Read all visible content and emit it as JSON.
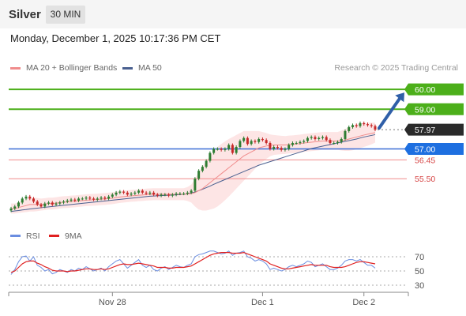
{
  "header": {
    "instrument": "Silver",
    "timeframe": "30 MIN",
    "datetime": "Monday, December 1, 2025 10:17:36 PM CET"
  },
  "legend": {
    "ma20_label": "MA 20 + Bollinger Bands",
    "ma50_label": "MA 50",
    "credit": "Research © 2025 Trading Central"
  },
  "rsi_legend": {
    "rsi_label": "RSI",
    "ma_label": "9MA"
  },
  "colors": {
    "up_candle": "#2e7d32",
    "down_candle": "#c62828",
    "target_line": "#4caf1a",
    "pivot_line": "#3d6fd6",
    "support_line": "#f08c8c",
    "ma20": "#f08c8c",
    "ma50": "#4a6090",
    "bollinger_fill": "#fde0e0",
    "arrow": "#2f5fa8",
    "rsi": "#6a8de0",
    "rsi_ma": "#e02020"
  },
  "chart_data": [
    {
      "type": "candlestick",
      "ylim": [
        53.6,
        60.8
      ],
      "x_tick_labels": [
        "Nov 28",
        "Dec 1",
        "Dec 2"
      ],
      "levels": [
        {
          "name": "target-2",
          "value": 60.0,
          "label": "60.00",
          "kind": "resistance"
        },
        {
          "name": "target-1",
          "value": 59.0,
          "label": "59.00",
          "kind": "resistance"
        },
        {
          "name": "last-price",
          "value": 57.97,
          "label": "57.97",
          "kind": "last"
        },
        {
          "name": "pivot",
          "value": 57.0,
          "label": "57.00",
          "kind": "pivot"
        },
        {
          "name": "support-1",
          "value": 56.45,
          "label": "56.45",
          "kind": "support"
        },
        {
          "name": "support-2",
          "value": 55.5,
          "label": "55.50",
          "kind": "support"
        }
      ],
      "closes": [
        54.0,
        54.1,
        54.3,
        54.5,
        54.6,
        54.5,
        54.35,
        54.2,
        54.1,
        54.25,
        54.3,
        54.2,
        54.25,
        54.3,
        54.35,
        54.4,
        54.45,
        54.4,
        54.5,
        54.5,
        54.55,
        54.5,
        54.45,
        54.5,
        54.55,
        54.5,
        54.6,
        54.7,
        54.8,
        54.85,
        54.8,
        54.7,
        54.75,
        54.8,
        54.9,
        54.8,
        54.75,
        54.8,
        54.7,
        54.65,
        54.7,
        54.7,
        54.65,
        54.7,
        54.75,
        54.75,
        54.75,
        54.8,
        54.9,
        55.5,
        55.9,
        56.1,
        56.4,
        56.8,
        57.0,
        57.0,
        56.95,
        57.0,
        57.2,
        56.8,
        57.1,
        57.4,
        57.55,
        57.25,
        57.4,
        57.35,
        57.5,
        57.45,
        57.3,
        57.0,
        57.1,
        57.05,
        56.95,
        57.0,
        57.2,
        57.3,
        57.3,
        57.35,
        57.4,
        57.55,
        57.6,
        57.5,
        57.55,
        57.6,
        57.45,
        57.3,
        57.3,
        57.35,
        57.5,
        57.9,
        58.1,
        58.2,
        58.15,
        58.3,
        58.25,
        58.2,
        58.15,
        57.97
      ],
      "ma20": [
        54.0,
        54.0,
        54.05,
        54.1,
        54.15,
        54.2,
        54.2,
        54.2,
        54.2,
        54.22,
        54.25,
        54.25,
        54.27,
        54.3,
        54.32,
        54.33,
        54.35,
        54.36,
        54.38,
        54.4,
        54.42,
        54.43,
        54.44,
        54.45,
        54.47,
        54.48,
        54.5,
        54.52,
        54.55,
        54.58,
        54.6,
        54.62,
        54.64,
        54.65,
        54.67,
        54.68,
        54.7,
        54.71,
        54.72,
        54.72,
        54.72,
        54.72,
        54.72,
        54.72,
        54.72,
        54.72,
        54.72,
        54.73,
        54.75,
        54.8,
        54.9,
        55.0,
        55.15,
        55.3,
        55.45,
        55.6,
        55.75,
        55.9,
        56.05,
        56.2,
        56.35,
        56.5,
        56.65,
        56.75,
        56.85,
        56.95,
        57.05,
        57.1,
        57.15,
        57.18,
        57.2,
        57.2,
        57.2,
        57.2,
        57.22,
        57.23,
        57.25,
        57.27,
        57.3,
        57.32,
        57.34,
        57.36,
        57.38,
        57.4,
        57.4,
        57.4,
        57.4,
        57.4,
        57.42,
        57.45,
        57.5,
        57.55,
        57.6,
        57.65,
        57.7,
        57.74,
        57.78,
        57.82
      ],
      "ma50": [
        53.85,
        53.88,
        53.9,
        53.93,
        53.95,
        53.98,
        54.0,
        54.02,
        54.04,
        54.06,
        54.08,
        54.1,
        54.12,
        54.14,
        54.16,
        54.18,
        54.2,
        54.22,
        54.24,
        54.26,
        54.28,
        54.3,
        54.32,
        54.34,
        54.36,
        54.38,
        54.4,
        54.42,
        54.44,
        54.46,
        54.48,
        54.5,
        54.52,
        54.54,
        54.56,
        54.58,
        54.6,
        54.62,
        54.63,
        54.64,
        54.65,
        54.66,
        54.67,
        54.68,
        54.69,
        54.7,
        54.72,
        54.74,
        54.78,
        54.83,
        54.9,
        54.97,
        55.05,
        55.13,
        55.22,
        55.3,
        55.38,
        55.46,
        55.54,
        55.62,
        55.7,
        55.78,
        55.86,
        55.94,
        56.02,
        56.1,
        56.18,
        56.24,
        56.3,
        56.36,
        56.42,
        56.48,
        56.54,
        56.6,
        56.66,
        56.72,
        56.78,
        56.84,
        56.9,
        56.96,
        57.02,
        57.06,
        57.1,
        57.14,
        57.18,
        57.22,
        57.26,
        57.3,
        57.34,
        57.38,
        57.42,
        57.46,
        57.5,
        57.55,
        57.6,
        57.64,
        57.68,
        57.72
      ],
      "bb_width": [
        0.25,
        0.25,
        0.27,
        0.3,
        0.33,
        0.35,
        0.35,
        0.33,
        0.3,
        0.3,
        0.3,
        0.3,
        0.3,
        0.3,
        0.3,
        0.3,
        0.3,
        0.3,
        0.3,
        0.3,
        0.3,
        0.3,
        0.3,
        0.3,
        0.3,
        0.3,
        0.3,
        0.3,
        0.3,
        0.3,
        0.3,
        0.3,
        0.3,
        0.3,
        0.3,
        0.3,
        0.3,
        0.3,
        0.3,
        0.3,
        0.3,
        0.3,
        0.3,
        0.3,
        0.3,
        0.3,
        0.3,
        0.35,
        0.45,
        0.7,
        0.95,
        1.1,
        1.25,
        1.35,
        1.45,
        1.5,
        1.5,
        1.48,
        1.45,
        1.4,
        1.35,
        1.3,
        1.25,
        1.15,
        1.05,
        0.95,
        0.85,
        0.75,
        0.65,
        0.55,
        0.5,
        0.48,
        0.46,
        0.45,
        0.45,
        0.45,
        0.45,
        0.45,
        0.45,
        0.45,
        0.45,
        0.45,
        0.45,
        0.45,
        0.45,
        0.45,
        0.45,
        0.45,
        0.5,
        0.55,
        0.6,
        0.62,
        0.62,
        0.62,
        0.6,
        0.58,
        0.55,
        0.5
      ]
    },
    {
      "type": "line",
      "name": "RSI panel",
      "ylim": [
        20,
        80
      ],
      "y_tick_labels": [
        "70",
        "50",
        "30"
      ],
      "y_ticks": [
        70,
        50,
        30
      ],
      "rsi": [
        45,
        52,
        63,
        70,
        71,
        64,
        70,
        58,
        55,
        50,
        52,
        46,
        48,
        52,
        50,
        48,
        52,
        50,
        54,
        52,
        56,
        53,
        50,
        52,
        54,
        50,
        56,
        60,
        64,
        66,
        60,
        54,
        58,
        62,
        66,
        58,
        55,
        58,
        52,
        50,
        54,
        56,
        52,
        55,
        58,
        56,
        55,
        58,
        60,
        70,
        73,
        74,
        76,
        78,
        78,
        76,
        74,
        75,
        78,
        72,
        75,
        76,
        78,
        70,
        68,
        64,
        66,
        64,
        60,
        52,
        54,
        52,
        50,
        52,
        56,
        58,
        56,
        58,
        60,
        64,
        62,
        56,
        58,
        60,
        56,
        52,
        52,
        54,
        58,
        64,
        66,
        66,
        64,
        66,
        62,
        58,
        58,
        54
      ],
      "rsi_ma": [
        48,
        50,
        55,
        60,
        63,
        64,
        64,
        61,
        59,
        56,
        54,
        51,
        50,
        50,
        50,
        49,
        50,
        50,
        51,
        52,
        53,
        53,
        52,
        52,
        53,
        52,
        53,
        55,
        57,
        59,
        60,
        59,
        59,
        60,
        61,
        60,
        59,
        58,
        57,
        55,
        55,
        55,
        54,
        54,
        55,
        55,
        55,
        56,
        57,
        60,
        63,
        66,
        69,
        72,
        74,
        75,
        76,
        76,
        76,
        75,
        75,
        75,
        76,
        74,
        72,
        70,
        68,
        66,
        64,
        60,
        58,
        56,
        54,
        53,
        53,
        54,
        55,
        56,
        57,
        58,
        59,
        58,
        58,
        58,
        58,
        56,
        55,
        55,
        55,
        56,
        58,
        60,
        62,
        63,
        63,
        62,
        61,
        60
      ]
    }
  ]
}
